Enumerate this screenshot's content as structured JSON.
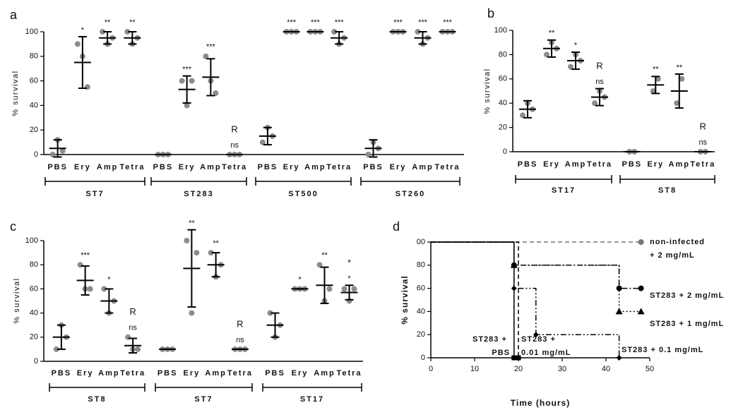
{
  "chart_data": [
    {
      "type": "dotplot",
      "panel_label": "a",
      "ylabel": "% survival",
      "ylim": [
        0,
        100
      ],
      "yticks": [
        0,
        20,
        40,
        60,
        80,
        100
      ],
      "point_color": "#8c8c8c",
      "line_color": "#000000",
      "groups": [
        {
          "name": "ST7",
          "categories": [
            "PBS",
            "Ery",
            "Amp",
            "Tetra"
          ],
          "points": [
            [
              0,
              12,
              3
            ],
            [
              90,
              80,
              55
            ],
            [
              100,
              90,
              95
            ],
            [
              100,
              90,
              95
            ]
          ],
          "means": [
            5,
            75,
            95,
            95
          ],
          "errors": [
            7,
            21,
            5,
            5
          ],
          "significance": [
            null,
            "*",
            "**",
            "**"
          ],
          "resistance": [
            null,
            null,
            null,
            null
          ]
        },
        {
          "name": "ST283",
          "categories": [
            "PBS",
            "Ery",
            "Amp",
            "Tetra"
          ],
          "points": [
            [
              0,
              0,
              0
            ],
            [
              60,
              40,
              60
            ],
            [
              80,
              60,
              50
            ],
            [
              0,
              0,
              0
            ]
          ],
          "means": [
            0,
            53,
            63,
            0
          ],
          "errors": [
            0,
            11,
            15,
            0
          ],
          "significance": [
            null,
            "***",
            "***",
            "ns"
          ],
          "resistance": [
            null,
            null,
            null,
            "R"
          ]
        },
        {
          "name": "ST500",
          "categories": [
            "PBS",
            "Ery",
            "Amp",
            "Tetra"
          ],
          "points": [
            [
              10,
              22,
              15
            ],
            [
              100,
              100,
              100
            ],
            [
              100,
              100,
              100
            ],
            [
              100,
              90,
              95
            ]
          ],
          "means": [
            15,
            100,
            100,
            95
          ],
          "errors": [
            7,
            0,
            0,
            5
          ],
          "significance": [
            null,
            "***",
            "***",
            "***"
          ],
          "resistance": [
            null,
            null,
            null,
            null
          ]
        },
        {
          "name": "ST260",
          "categories": [
            "PBS",
            "Ery",
            "Amp",
            "Tetra"
          ],
          "points": [
            [
              0,
              10,
              5
            ],
            [
              100,
              100,
              100
            ],
            [
              100,
              90,
              95
            ],
            [
              100,
              100,
              100
            ]
          ],
          "means": [
            5,
            100,
            95,
            100
          ],
          "errors": [
            7,
            0,
            5,
            0
          ],
          "significance": [
            null,
            "***",
            "***",
            "***"
          ],
          "resistance": [
            null,
            null,
            null,
            null
          ]
        }
      ]
    },
    {
      "type": "dotplot",
      "panel_label": "b",
      "ylabel": "% survival",
      "ylim": [
        0,
        100
      ],
      "yticks": [
        0,
        20,
        40,
        60,
        80,
        100
      ],
      "point_color": "#8c8c8c",
      "line_color": "#000000",
      "groups": [
        {
          "name": "ST17",
          "categories": [
            "PBS",
            "Ery",
            "Amp",
            "Tetra"
          ],
          "points": [
            [
              30,
              40,
              35
            ],
            [
              80,
              90,
              85
            ],
            [
              70,
              80,
              75
            ],
            [
              40,
              50,
              45
            ]
          ],
          "means": [
            35,
            85,
            75,
            45
          ],
          "errors": [
            7,
            7,
            7,
            7
          ],
          "significance": [
            null,
            "**",
            "*",
            "ns"
          ],
          "resistance": [
            null,
            null,
            null,
            "R"
          ]
        },
        {
          "name": "ST8",
          "categories": [
            "PBS",
            "Ery",
            "Amp",
            "Tetra"
          ],
          "points": [
            [
              0,
              0
            ],
            [
              50,
              60
            ],
            [
              40,
              60
            ],
            [
              0,
              0
            ]
          ],
          "means": [
            0,
            55,
            50,
            0
          ],
          "errors": [
            0,
            7,
            14,
            0
          ],
          "significance": [
            null,
            "**",
            "**",
            "ns"
          ],
          "resistance": [
            null,
            null,
            null,
            "R"
          ]
        }
      ]
    },
    {
      "type": "dotplot",
      "panel_label": "c",
      "ylabel": "% survival",
      "ylim": [
        0,
        100
      ],
      "yticks": [
        0,
        20,
        40,
        60,
        80,
        100
      ],
      "point_color": "#8c8c8c",
      "line_color": "#000000",
      "groups": [
        {
          "name": "ST8",
          "categories": [
            "PBS",
            "Ery",
            "Amp",
            "Tetra"
          ],
          "points": [
            [
              10,
              30,
              20
            ],
            [
              80,
              60,
              60
            ],
            [
              60,
              40,
              50
            ],
            [
              20,
              10,
              10
            ]
          ],
          "means": [
            20,
            67,
            50,
            13
          ],
          "errors": [
            10,
            12,
            10,
            6
          ],
          "significance": [
            null,
            "***",
            "*",
            "ns"
          ],
          "resistance": [
            null,
            null,
            null,
            "R"
          ]
        },
        {
          "name": "ST7",
          "categories": [
            "PBS",
            "Ery",
            "Amp",
            "Tetra"
          ],
          "points": [
            [
              10,
              10,
              10
            ],
            [
              100,
              40,
              90
            ],
            [
              90,
              70,
              80
            ],
            [
              10,
              10,
              10
            ]
          ],
          "means": [
            10,
            77,
            80,
            10
          ],
          "errors": [
            0,
            32,
            10,
            0
          ],
          "significance": [
            null,
            "**",
            "**",
            "ns"
          ],
          "resistance": [
            null,
            null,
            null,
            "R"
          ]
        },
        {
          "name": "ST17",
          "categories": [
            "PBS",
            "Ery",
            "Amp",
            "Tetra"
          ],
          "points": [
            [
              40,
              20,
              30
            ],
            [
              60,
              60,
              60
            ],
            [
              80,
              50,
              60
            ],
            [
              60,
              50,
              60
            ]
          ],
          "means": [
            30,
            60,
            63,
            57
          ],
          "errors": [
            10,
            0,
            15,
            6
          ],
          "significance": [
            null,
            "*",
            "**",
            "*"
          ],
          "resistance": [
            null,
            null,
            null,
            "*"
          ]
        }
      ]
    },
    {
      "type": "survival",
      "panel_label": "d",
      "xlabel": "Time (hours)",
      "ylabel": "% survival",
      "xlim": [
        0,
        50
      ],
      "xticks": [
        0,
        10,
        20,
        30,
        40,
        50
      ],
      "ylim": [
        0,
        100
      ],
      "yticks": [
        0,
        20,
        40,
        60,
        80,
        {
          "value": 100,
          "label": "00"
        }
      ],
      "series": [
        {
          "name": [
            "non-infected",
            "+ 2 mg/mL"
          ],
          "style": "dashed",
          "color": "#777777",
          "marker": "circle",
          "x": [
            0,
            48
          ],
          "values": [
            100,
            100
          ]
        },
        {
          "name": [
            "ST283 + 2 mg/mL"
          ],
          "style": "dashdot",
          "color": "#000000",
          "marker": "circle",
          "x": [
            0,
            19,
            43,
            48
          ],
          "values": [
            100,
            80,
            60,
            60
          ]
        },
        {
          "name": [
            "ST283 + 1 mg/mL"
          ],
          "style": "dotted",
          "color": "#000000",
          "marker": "triangle",
          "x": [
            0,
            19,
            43,
            48
          ],
          "values": [
            100,
            80,
            40,
            40
          ]
        },
        {
          "name": [
            "ST283 + 0.1 mg/mL"
          ],
          "style": "dashdotdot",
          "color": "#000000",
          "marker": "diamond",
          "x": [
            0,
            19,
            24,
            43
          ],
          "values": [
            100,
            60,
            20,
            0
          ]
        },
        {
          "name": [
            "ST283 +",
            "PBS"
          ],
          "style": "solid",
          "color": "#000000",
          "marker": "square",
          "x": [
            0,
            19
          ],
          "values": [
            100,
            0
          ]
        },
        {
          "name": [
            "ST283 +",
            "0.01 mg/mL"
          ],
          "style": "dashed",
          "color": "#000000",
          "marker": "square",
          "x": [
            0,
            20
          ],
          "values": [
            100,
            0
          ]
        }
      ]
    }
  ]
}
